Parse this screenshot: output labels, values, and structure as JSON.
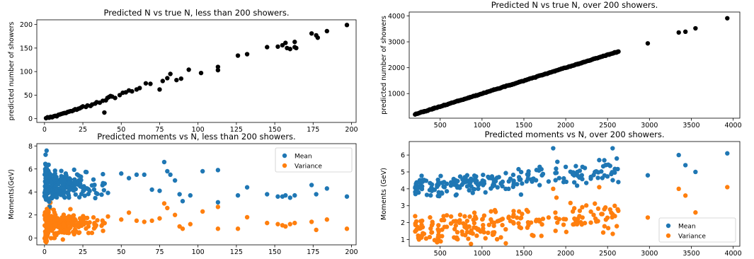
{
  "chart_data": [
    {
      "type": "scatter",
      "title": "Predicted N vs true N, less than 200 showers.",
      "xlabel": "",
      "ylabel": "predicted number of showers",
      "xlim": [
        -5,
        203
      ],
      "ylim": [
        -8,
        210
      ],
      "xticks": [
        0,
        25,
        50,
        75,
        100,
        125,
        150,
        175,
        200
      ],
      "yticks": [
        0,
        50,
        100,
        150,
        200
      ],
      "grid": false,
      "series": [
        {
          "color": "#000000",
          "points": [
            [
              1,
              1
            ],
            [
              2,
              3
            ],
            [
              3,
              2
            ],
            [
              4,
              4
            ],
            [
              5,
              3
            ],
            [
              6,
              5
            ],
            [
              7,
              6
            ],
            [
              8,
              5
            ],
            [
              9,
              8
            ],
            [
              10,
              9
            ],
            [
              11,
              10
            ],
            [
              12,
              11
            ],
            [
              13,
              12
            ],
            [
              14,
              12
            ],
            [
              15,
              14
            ],
            [
              16,
              15
            ],
            [
              17,
              16
            ],
            [
              18,
              16
            ],
            [
              19,
              18
            ],
            [
              20,
              20
            ],
            [
              21,
              19
            ],
            [
              22,
              21
            ],
            [
              23,
              22
            ],
            [
              24,
              24
            ],
            [
              25,
              26
            ],
            [
              27,
              25
            ],
            [
              28,
              28
            ],
            [
              30,
              27
            ],
            [
              31,
              30
            ],
            [
              33,
              32
            ],
            [
              34,
              35
            ],
            [
              36,
              34
            ],
            [
              38,
              38
            ],
            [
              39,
              13
            ],
            [
              40,
              39
            ],
            [
              41,
              44
            ],
            [
              42,
              46
            ],
            [
              43,
              48
            ],
            [
              44,
              47
            ],
            [
              46,
              44
            ],
            [
              49,
              50
            ],
            [
              51,
              55
            ],
            [
              53,
              56
            ],
            [
              55,
              60
            ],
            [
              57,
              58
            ],
            [
              60,
              62
            ],
            [
              62,
              65
            ],
            [
              66,
              75
            ],
            [
              69,
              74
            ],
            [
              75,
              62
            ],
            [
              77,
              80
            ],
            [
              80,
              86
            ],
            [
              82,
              95
            ],
            [
              86,
              82
            ],
            [
              89,
              85
            ],
            [
              94,
              104
            ],
            [
              102,
              97
            ],
            [
              113,
              103
            ],
            [
              113,
              110
            ],
            [
              126,
              134
            ],
            [
              132,
              137
            ],
            [
              145,
              152
            ],
            [
              152,
              153
            ],
            [
              155,
              156
            ],
            [
              157,
              161
            ],
            [
              158,
              150
            ],
            [
              160,
              148
            ],
            [
              163,
              152
            ],
            [
              163,
              163
            ],
            [
              164,
              150
            ],
            [
              174,
              181
            ],
            [
              177,
              177
            ],
            [
              178,
              172
            ],
            [
              184,
              186
            ],
            [
              197,
              199
            ]
          ]
        }
      ]
    },
    {
      "type": "scatter",
      "title": "Predicted N vs true N, over 200 showers.",
      "xlabel": "",
      "ylabel": "predicted number of showers",
      "xlim": [
        130,
        4080
      ],
      "ylim": [
        50,
        4150
      ],
      "xticks": [
        500,
        1000,
        1500,
        2000,
        2500,
        3000,
        3500,
        4000
      ],
      "yticks": [
        1000,
        2000,
        3000,
        4000
      ],
      "grid": false,
      "series": [
        {
          "color": "#000000",
          "line_from": [
            200,
            200
          ],
          "line_to": [
            2630,
            2630
          ],
          "extra_points": [
            [
              2980,
              2940
            ],
            [
              3350,
              3360
            ],
            [
              3430,
              3390
            ],
            [
              3550,
              3520
            ],
            [
              3930,
              3910
            ]
          ]
        }
      ]
    },
    {
      "type": "scatter",
      "title": "Predicted moments vs N, less than 200 showers.",
      "xlabel": "",
      "ylabel": "Moments(GeV)",
      "xlim": [
        -5,
        203
      ],
      "ylim": [
        -0.6,
        8.2
      ],
      "xticks": [
        0,
        25,
        50,
        75,
        100,
        125,
        150,
        175,
        200
      ],
      "yticks": [
        0,
        2,
        4,
        6,
        8
      ],
      "grid": false,
      "legend_position": "top-right",
      "series": [
        {
          "name": "Mean",
          "color": "#1f77b4",
          "points": [
            [
              50,
              5.6
            ],
            [
              55,
              5.2
            ],
            [
              60,
              5.5
            ],
            [
              65,
              5.5
            ],
            [
              70,
              4.2
            ],
            [
              75,
              4.1
            ],
            [
              78,
              6.6
            ],
            [
              80,
              5.8
            ],
            [
              82,
              5.5
            ],
            [
              85,
              5.0
            ],
            [
              88,
              3.8
            ],
            [
              90,
              3.2
            ],
            [
              95,
              3.7
            ],
            [
              103,
              5.8
            ],
            [
              113,
              5.9
            ],
            [
              113,
              3.1
            ],
            [
              126,
              3.7
            ],
            [
              132,
              4.4
            ],
            [
              145,
              3.8
            ],
            [
              152,
              3.6
            ],
            [
              155,
              3.6
            ],
            [
              157,
              3.7
            ],
            [
              160,
              3.5
            ],
            [
              163,
              3.7
            ],
            [
              174,
              4.6
            ],
            [
              177,
              3.8
            ],
            [
              184,
              4.3
            ],
            [
              197,
              3.6
            ]
          ]
        },
        {
          "name": "Variance",
          "color": "#ff7f0e",
          "points": [
            [
              50,
              1.6
            ],
            [
              55,
              2.2
            ],
            [
              60,
              1.5
            ],
            [
              65,
              1.4
            ],
            [
              70,
              1.5
            ],
            [
              75,
              1.7
            ],
            [
              78,
              3.0
            ],
            [
              80,
              2.6
            ],
            [
              85,
              2.0
            ],
            [
              88,
              1.0
            ],
            [
              90,
              0.8
            ],
            [
              95,
              1.2
            ],
            [
              103,
              2.3
            ],
            [
              113,
              0.8
            ],
            [
              113,
              2.7
            ],
            [
              126,
              0.8
            ],
            [
              132,
              1.8
            ],
            [
              145,
              1.3
            ],
            [
              152,
              1.2
            ],
            [
              155,
              1.1
            ],
            [
              157,
              1.0
            ],
            [
              160,
              1.2
            ],
            [
              163,
              1.3
            ],
            [
              174,
              1.4
            ],
            [
              177,
              0.7
            ],
            [
              184,
              1.6
            ],
            [
              197,
              0.8
            ]
          ]
        }
      ]
    },
    {
      "type": "scatter",
      "title": "Predicted moments vs N, over 200 showers.",
      "xlabel": "",
      "ylabel": "Moments (GeV)",
      "xlim": [
        130,
        4080
      ],
      "ylim": [
        0.6,
        6.8
      ],
      "xticks": [
        500,
        1000,
        1500,
        2000,
        2500,
        3000,
        3500,
        4000
      ],
      "yticks": [
        1,
        2,
        3,
        4,
        5,
        6
      ],
      "grid": false,
      "legend_position": "bottom-right",
      "series": [
        {
          "name": "Mean",
          "color": "#1f77b4",
          "points": [
            [
              2980,
              4.8
            ],
            [
              3350,
              6.0
            ],
            [
              3430,
              5.4
            ],
            [
              3550,
              5.0
            ],
            [
              3930,
              6.1
            ],
            [
              2560,
              6.4
            ],
            [
              2400,
              5.7
            ],
            [
              2300,
              4.6
            ],
            [
              2200,
              5.3
            ],
            [
              2100,
              4.8
            ],
            [
              2000,
              5.3
            ],
            [
              1900,
              5.6
            ],
            [
              1850,
              6.4
            ]
          ]
        },
        {
          "name": "Variance",
          "color": "#ff7f0e",
          "points": [
            [
              2980,
              2.3
            ],
            [
              3350,
              4.0
            ],
            [
              3430,
              3.6
            ],
            [
              3550,
              2.6
            ],
            [
              3930,
              4.1
            ],
            [
              2560,
              2.5
            ],
            [
              2400,
              4.1
            ],
            [
              2300,
              2.0
            ],
            [
              2200,
              2.3
            ],
            [
              2100,
              1.9
            ],
            [
              2000,
              2.2
            ],
            [
              1900,
              2.0
            ],
            [
              1850,
              4.0
            ]
          ]
        }
      ]
    }
  ]
}
